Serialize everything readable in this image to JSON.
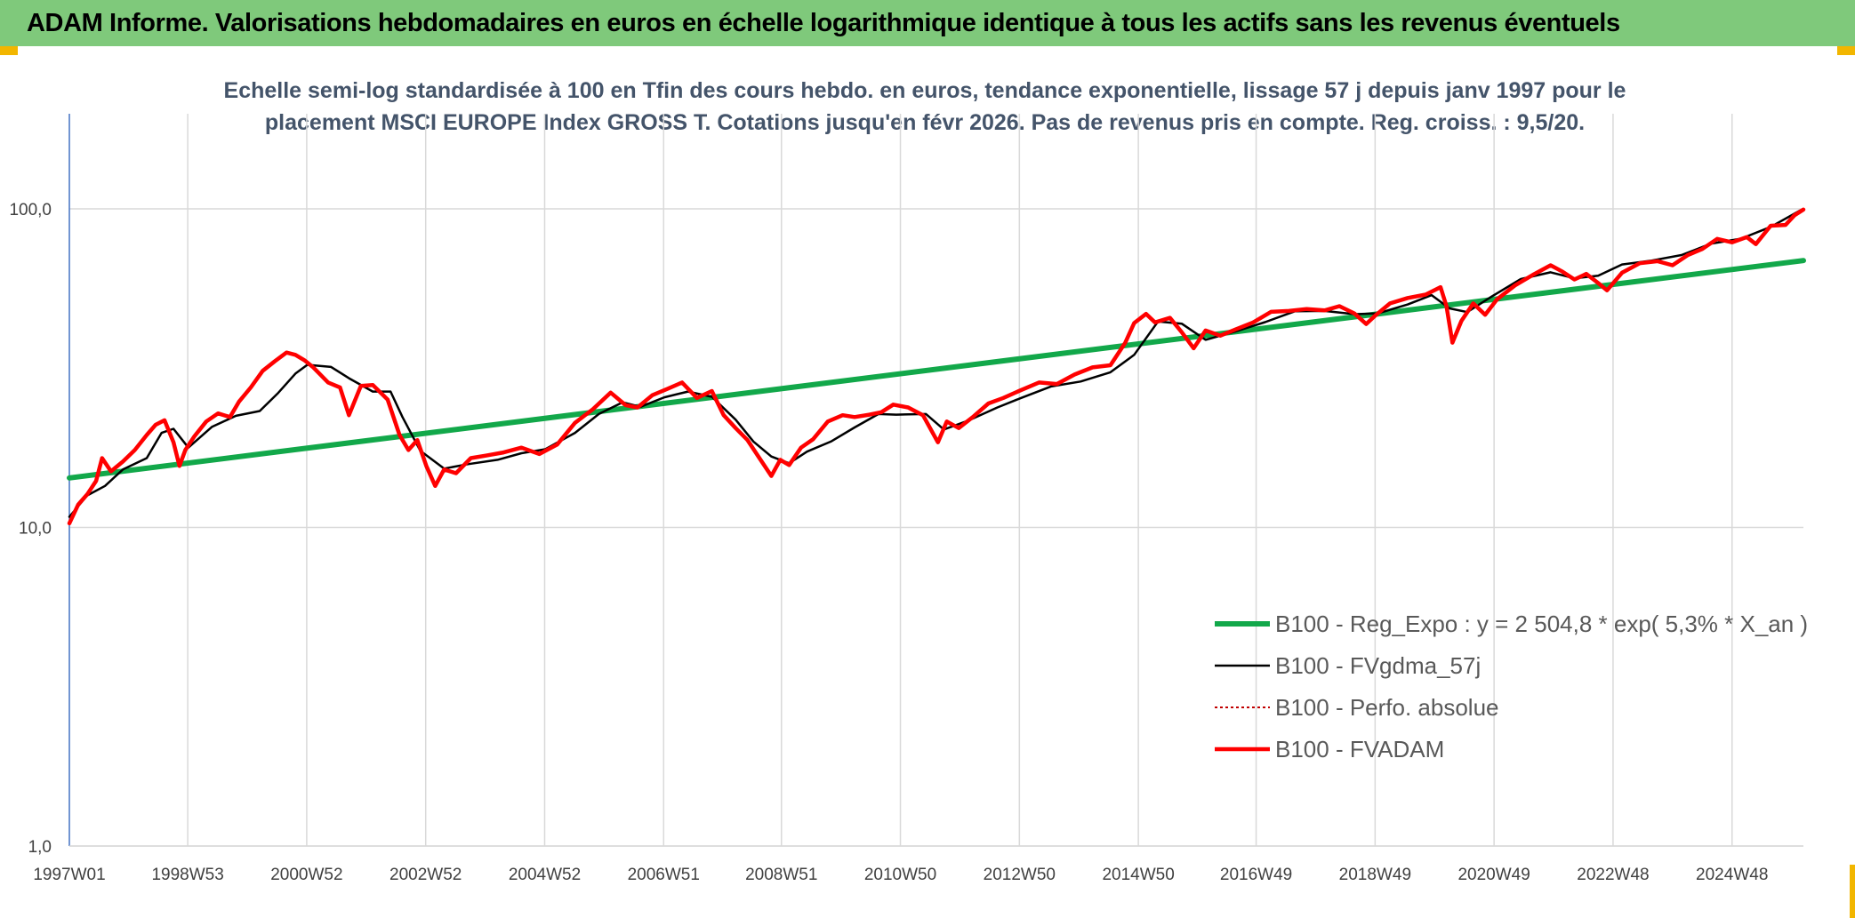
{
  "header": {
    "title": "ADAM Informe. Valorisations hebdomadaires en euros en échelle logarithmique identique à tous les actifs sans les revenus éventuels"
  },
  "chart_data": {
    "type": "line",
    "title": "Echelle semi-log standardisée à 100 en Tfin des cours hebdo. en euros, tendance exponentielle, lissage 57 j depuis janv 1997 pour le placement MSCI EUROPE Index GROSS T. Cotations jusqu'en févr 2026. Pas de revenus pris en compte. Reg. croiss. : 9,5/20.",
    "y_scale": "log",
    "ylim": [
      1,
      180
    ],
    "y_ticks": [
      1,
      10,
      100
    ],
    "y_tick_labels": [
      "1,0",
      "10,0",
      "100,0"
    ],
    "xlim": [
      1997.0,
      2026.15
    ],
    "x_ticks": [
      1997.0,
      1998.99,
      2000.99,
      2002.99,
      2004.99,
      2006.99,
      2008.97,
      2010.97,
      2012.97,
      2014.97,
      2016.95,
      2018.95,
      2020.95,
      2022.95,
      2024.95
    ],
    "x_tick_labels": [
      "1997W01",
      "1998W53",
      "2000W52",
      "2002W52",
      "2004W52",
      "2006W51",
      "2008W51",
      "2010W50",
      "2012W50",
      "2014W50",
      "2016W49",
      "2018W49",
      "2020W49",
      "2022W48",
      "2024W48"
    ],
    "grid": "on",
    "legend_position": "center-right",
    "series": [
      {
        "name": "B100 - Reg_Expo : y = 2 504,8 * exp( 5,3% *  X_an )",
        "color": "#12a84a",
        "style": "solid",
        "width": 6,
        "x": [
          1997.0,
          2026.15
        ],
        "y": [
          14.3,
          68.8
        ]
      },
      {
        "name": "B100 - FVgdma_57j",
        "color": "#000000",
        "style": "solid",
        "width": 2.5,
        "x": [
          1997.0,
          1997.3,
          1997.6,
          1997.9,
          1998.3,
          1998.55,
          1998.75,
          1999.0,
          1999.4,
          1999.8,
          2000.2,
          2000.5,
          2000.8,
          2001.0,
          2001.4,
          2001.7,
          2002.1,
          2002.4,
          2002.6,
          2002.9,
          2003.3,
          2003.7,
          2004.2,
          2004.6,
          2005.0,
          2005.5,
          2005.9,
          2006.3,
          2006.6,
          2007.0,
          2007.4,
          2007.8,
          2008.2,
          2008.5,
          2008.8,
          2009.1,
          2009.4,
          2009.8,
          2010.2,
          2010.6,
          2010.9,
          2011.4,
          2011.7,
          2012.1,
          2012.6,
          2013.0,
          2013.5,
          2014.0,
          2014.5,
          2014.9,
          2015.3,
          2015.7,
          2016.1,
          2016.6,
          2017.1,
          2017.6,
          2018.1,
          2018.6,
          2019.0,
          2019.5,
          2019.9,
          2020.2,
          2020.5,
          2020.9,
          2021.4,
          2021.9,
          2022.3,
          2022.7,
          2023.1,
          2023.6,
          2024.1,
          2024.6,
          2025.1,
          2025.6,
          2026.1
        ],
        "y": [
          10.8,
          12.6,
          13.5,
          15.2,
          16.5,
          19.8,
          20.4,
          17.8,
          20.7,
          22.4,
          23.2,
          26.3,
          30.4,
          32.4,
          31.9,
          29.4,
          26.7,
          26.7,
          22.2,
          17.4,
          15.3,
          15.8,
          16.3,
          17.1,
          17.6,
          19.8,
          22.7,
          24.7,
          23.9,
          25.6,
          26.7,
          25.7,
          21.8,
          18.6,
          16.7,
          15.9,
          17.3,
          18.6,
          20.6,
          22.7,
          22.6,
          22.7,
          20.3,
          21.6,
          23.8,
          25.5,
          27.7,
          28.7,
          30.7,
          34.8,
          44.3,
          43.6,
          38.8,
          41.2,
          44.1,
          47.7,
          47.8,
          46.7,
          47.0,
          50.1,
          53.6,
          48.7,
          47.4,
          52.9,
          60.2,
          63.2,
          60.5,
          61.7,
          66.9,
          68.8,
          71.6,
          77.8,
          80.6,
          87.8,
          99.0
        ]
      },
      {
        "name": "B100 - Perfo. absolue",
        "color": "#c00000",
        "style": "dotted",
        "width": 2,
        "x": [],
        "y": []
      },
      {
        "name": "B100 - FVADAM",
        "color": "#ff0000",
        "style": "solid",
        "width": 4.5,
        "x": [
          1997.0,
          1997.15,
          1997.3,
          1997.45,
          1997.55,
          1997.7,
          1997.9,
          1998.1,
          1998.3,
          1998.45,
          1998.6,
          1998.75,
          1998.85,
          1998.95,
          1999.1,
          1999.3,
          1999.5,
          1999.7,
          1999.85,
          2000.05,
          2000.25,
          2000.45,
          2000.65,
          2000.8,
          2000.95,
          2001.1,
          2001.35,
          2001.55,
          2001.7,
          2001.9,
          2002.1,
          2002.35,
          2002.55,
          2002.7,
          2002.85,
          2003.0,
          2003.15,
          2003.3,
          2003.5,
          2003.75,
          2004.0,
          2004.3,
          2004.6,
          2004.9,
          2005.2,
          2005.5,
          2005.8,
          2006.1,
          2006.35,
          2006.55,
          2006.8,
          2007.05,
          2007.3,
          2007.55,
          2007.8,
          2008.0,
          2008.2,
          2008.4,
          2008.6,
          2008.8,
          2008.95,
          2009.1,
          2009.3,
          2009.5,
          2009.75,
          2010.0,
          2010.2,
          2010.45,
          2010.65,
          2010.85,
          2011.1,
          2011.35,
          2011.6,
          2011.75,
          2011.95,
          2012.2,
          2012.45,
          2012.7,
          2013.0,
          2013.3,
          2013.6,
          2013.9,
          2014.2,
          2014.5,
          2014.75,
          2014.9,
          2015.1,
          2015.25,
          2015.5,
          2015.7,
          2015.9,
          2016.1,
          2016.35,
          2016.6,
          2016.9,
          2017.2,
          2017.5,
          2017.8,
          2018.1,
          2018.35,
          2018.6,
          2018.8,
          2018.95,
          2019.2,
          2019.5,
          2019.8,
          2020.05,
          2020.15,
          2020.25,
          2020.4,
          2020.6,
          2020.8,
          2021.0,
          2021.3,
          2021.6,
          2021.9,
          2022.1,
          2022.3,
          2022.5,
          2022.7,
          2022.85,
          2023.1,
          2023.4,
          2023.7,
          2023.95,
          2024.2,
          2024.45,
          2024.7,
          2024.95,
          2025.2,
          2025.35,
          2025.6,
          2025.85,
          2026.0,
          2026.15
        ],
        "y": [
          10.3,
          11.8,
          12.7,
          14.0,
          16.5,
          15.0,
          16.1,
          17.5,
          19.5,
          21.0,
          21.7,
          18.5,
          15.6,
          17.5,
          19.3,
          21.5,
          22.8,
          22.2,
          24.8,
          27.5,
          31.0,
          33.2,
          35.4,
          34.8,
          33.5,
          31.8,
          28.5,
          27.5,
          22.5,
          27.8,
          28.0,
          25.2,
          19.5,
          17.5,
          18.8,
          15.6,
          13.5,
          15.2,
          14.8,
          16.5,
          16.8,
          17.2,
          17.8,
          17.0,
          18.2,
          21.3,
          23.5,
          26.5,
          24.2,
          23.8,
          26.0,
          27.2,
          28.5,
          25.5,
          26.8,
          22.5,
          20.5,
          18.8,
          16.5,
          14.5,
          16.3,
          15.7,
          17.8,
          18.9,
          21.5,
          22.5,
          22.2,
          22.6,
          23.0,
          24.3,
          23.8,
          22.5,
          18.5,
          21.5,
          20.5,
          22.3,
          24.5,
          25.5,
          27.0,
          28.5,
          28.2,
          30.2,
          31.8,
          32.3,
          38.0,
          43.8,
          46.8,
          44.0,
          45.5,
          41.0,
          36.5,
          41.5,
          40.0,
          41.8,
          44.0,
          47.5,
          47.8,
          48.5,
          48.0,
          49.5,
          47.0,
          43.5,
          46.2,
          50.5,
          52.5,
          53.8,
          56.8,
          49.5,
          38.0,
          44.5,
          50.5,
          46.5,
          52.0,
          57.5,
          62.0,
          66.5,
          63.5,
          60.0,
          62.5,
          58.5,
          55.5,
          63.0,
          67.5,
          68.5,
          66.5,
          71.5,
          74.8,
          80.5,
          78.5,
          81.5,
          77.5,
          88.5,
          89.0,
          95.5,
          99.5
        ]
      }
    ]
  }
}
